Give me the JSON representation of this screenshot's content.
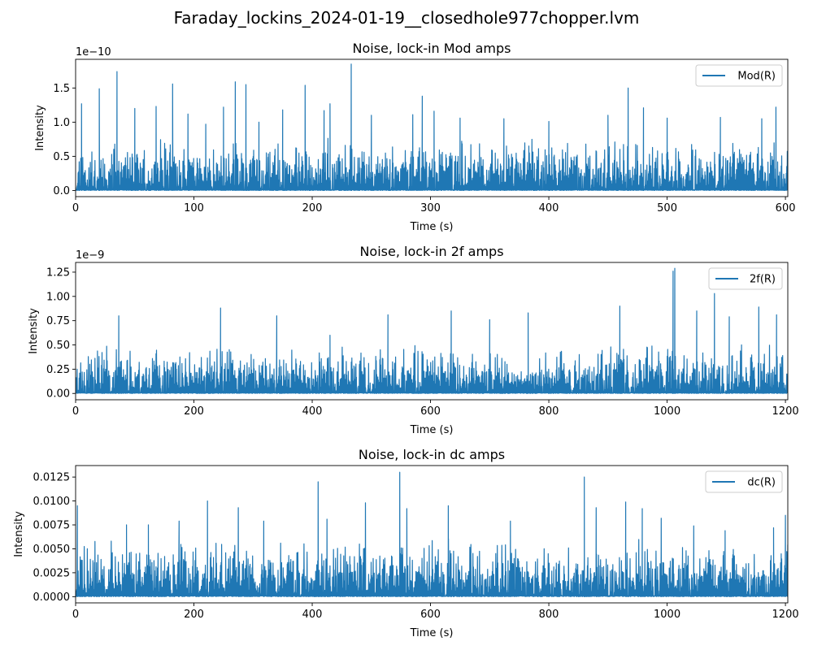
{
  "figure": {
    "title": "Faraday_lockins_2024-01-19__closedhole977chopper.lvm"
  },
  "chart_data": [
    {
      "type": "line",
      "title": "Noise, lock-in Mod amps",
      "xlabel": "Time (s)",
      "ylabel": "Intensity",
      "offset_text": "1e−10",
      "xlim": [
        0,
        602
      ],
      "ylim": [
        -0.09,
        1.92
      ],
      "xticks": [
        0,
        100,
        200,
        300,
        400,
        500,
        600
      ],
      "xtick_labels": [
        "0",
        "100",
        "200",
        "300",
        "400",
        "500",
        "600"
      ],
      "yticks": [
        0.0,
        0.5,
        1.0,
        1.5
      ],
      "ytick_labels": [
        "0.0",
        "0.5",
        "1.0",
        "1.5"
      ],
      "grid": false,
      "legend_placement": "top-right",
      "color": "#1f77b4",
      "series": [
        {
          "name": "Mod(R)",
          "noise": {
            "n": 1400,
            "base": 0.55,
            "seed": 11
          },
          "peaks": [
            [
              5,
              1.27
            ],
            [
              20,
              1.49
            ],
            [
              35,
              1.74
            ],
            [
              50,
              1.2
            ],
            [
              68,
              1.23
            ],
            [
              82,
              1.56
            ],
            [
              95,
              1.12
            ],
            [
              110,
              0.97
            ],
            [
              125,
              1.22
            ],
            [
              135,
              1.59
            ],
            [
              144,
              1.55
            ],
            [
              155,
              1.0
            ],
            [
              175,
              1.18
            ],
            [
              194,
              1.54
            ],
            [
              210,
              1.17
            ],
            [
              215,
              1.27
            ],
            [
              233,
              1.85
            ],
            [
              250,
              1.1
            ],
            [
              285,
              1.11
            ],
            [
              293,
              1.38
            ],
            [
              303,
              1.16
            ],
            [
              325,
              1.06
            ],
            [
              362,
              1.05
            ],
            [
              400,
              1.01
            ],
            [
              450,
              1.1
            ],
            [
              467,
              1.5
            ],
            [
              480,
              1.21
            ],
            [
              500,
              1.06
            ],
            [
              545,
              1.07
            ],
            [
              580,
              1.05
            ],
            [
              592,
              1.22
            ]
          ]
        }
      ]
    },
    {
      "type": "line",
      "title": "Noise, lock-in 2f amps",
      "xlabel": "Time (s)",
      "ylabel": "Intensity",
      "offset_text": "1e−9",
      "xlim": [
        0,
        1204
      ],
      "ylim": [
        -0.065,
        1.35
      ],
      "xticks": [
        0,
        200,
        400,
        600,
        800,
        1000,
        1200
      ],
      "xtick_labels": [
        "0",
        "200",
        "400",
        "600",
        "800",
        "1000",
        "1200"
      ],
      "yticks": [
        0.0,
        0.25,
        0.5,
        0.75,
        1.0,
        1.25
      ],
      "ytick_labels": [
        "0.00",
        "0.25",
        "0.50",
        "0.75",
        "1.00",
        "1.25"
      ],
      "grid": false,
      "legend_placement": "top-right",
      "color": "#1f77b4",
      "series": [
        {
          "name": "2f(R)",
          "noise": {
            "n": 1400,
            "base": 0.37,
            "seed": 23
          },
          "peaks": [
            [
              73,
              0.8
            ],
            [
              245,
              0.88
            ],
            [
              340,
              0.8
            ],
            [
              430,
              0.6
            ],
            [
              528,
              0.81
            ],
            [
              635,
              0.85
            ],
            [
              700,
              0.76
            ],
            [
              765,
              0.83
            ],
            [
              920,
              0.9
            ],
            [
              1010,
              1.26
            ],
            [
              1013,
              1.29
            ],
            [
              1050,
              0.85
            ],
            [
              1080,
              1.03
            ],
            [
              1105,
              0.79
            ],
            [
              1155,
              0.89
            ],
            [
              1185,
              0.81
            ]
          ]
        }
      ]
    },
    {
      "type": "line",
      "title": "Noise, lock-in dc amps",
      "xlabel": "Time (s)",
      "ylabel": "Intensity",
      "offset_text": "",
      "xlim": [
        0,
        1204
      ],
      "ylim": [
        -0.00065,
        0.0137
      ],
      "xticks": [
        0,
        200,
        400,
        600,
        800,
        1000,
        1200
      ],
      "xtick_labels": [
        "0",
        "200",
        "400",
        "600",
        "800",
        "1000",
        "1200"
      ],
      "yticks": [
        0.0,
        0.0025,
        0.005,
        0.0075,
        0.01,
        0.0125
      ],
      "ytick_labels": [
        "0.0000",
        "0.0025",
        "0.0050",
        "0.0075",
        "0.0100",
        "0.0125"
      ],
      "grid": false,
      "legend_placement": "top-right",
      "color": "#1f77b4",
      "series": [
        {
          "name": "dc(R)",
          "noise": {
            "n": 1400,
            "base": 0.0045,
            "seed": 37
          },
          "peaks": [
            [
              3,
              0.0095
            ],
            [
              86,
              0.0075
            ],
            [
              123,
              0.0075
            ],
            [
              175,
              0.0079
            ],
            [
              223,
              0.01
            ],
            [
              275,
              0.0093
            ],
            [
              318,
              0.0079
            ],
            [
              410,
              0.012
            ],
            [
              425,
              0.0081
            ],
            [
              490,
              0.0098
            ],
            [
              548,
              0.013
            ],
            [
              560,
              0.0092
            ],
            [
              630,
              0.0095
            ],
            [
              735,
              0.0079
            ],
            [
              860,
              0.0125
            ],
            [
              880,
              0.0093
            ],
            [
              930,
              0.0099
            ],
            [
              958,
              0.0092
            ],
            [
              990,
              0.0082
            ],
            [
              1045,
              0.0074
            ],
            [
              1098,
              0.0069
            ],
            [
              1180,
              0.0072
            ],
            [
              1200,
              0.0085
            ]
          ]
        }
      ]
    }
  ]
}
